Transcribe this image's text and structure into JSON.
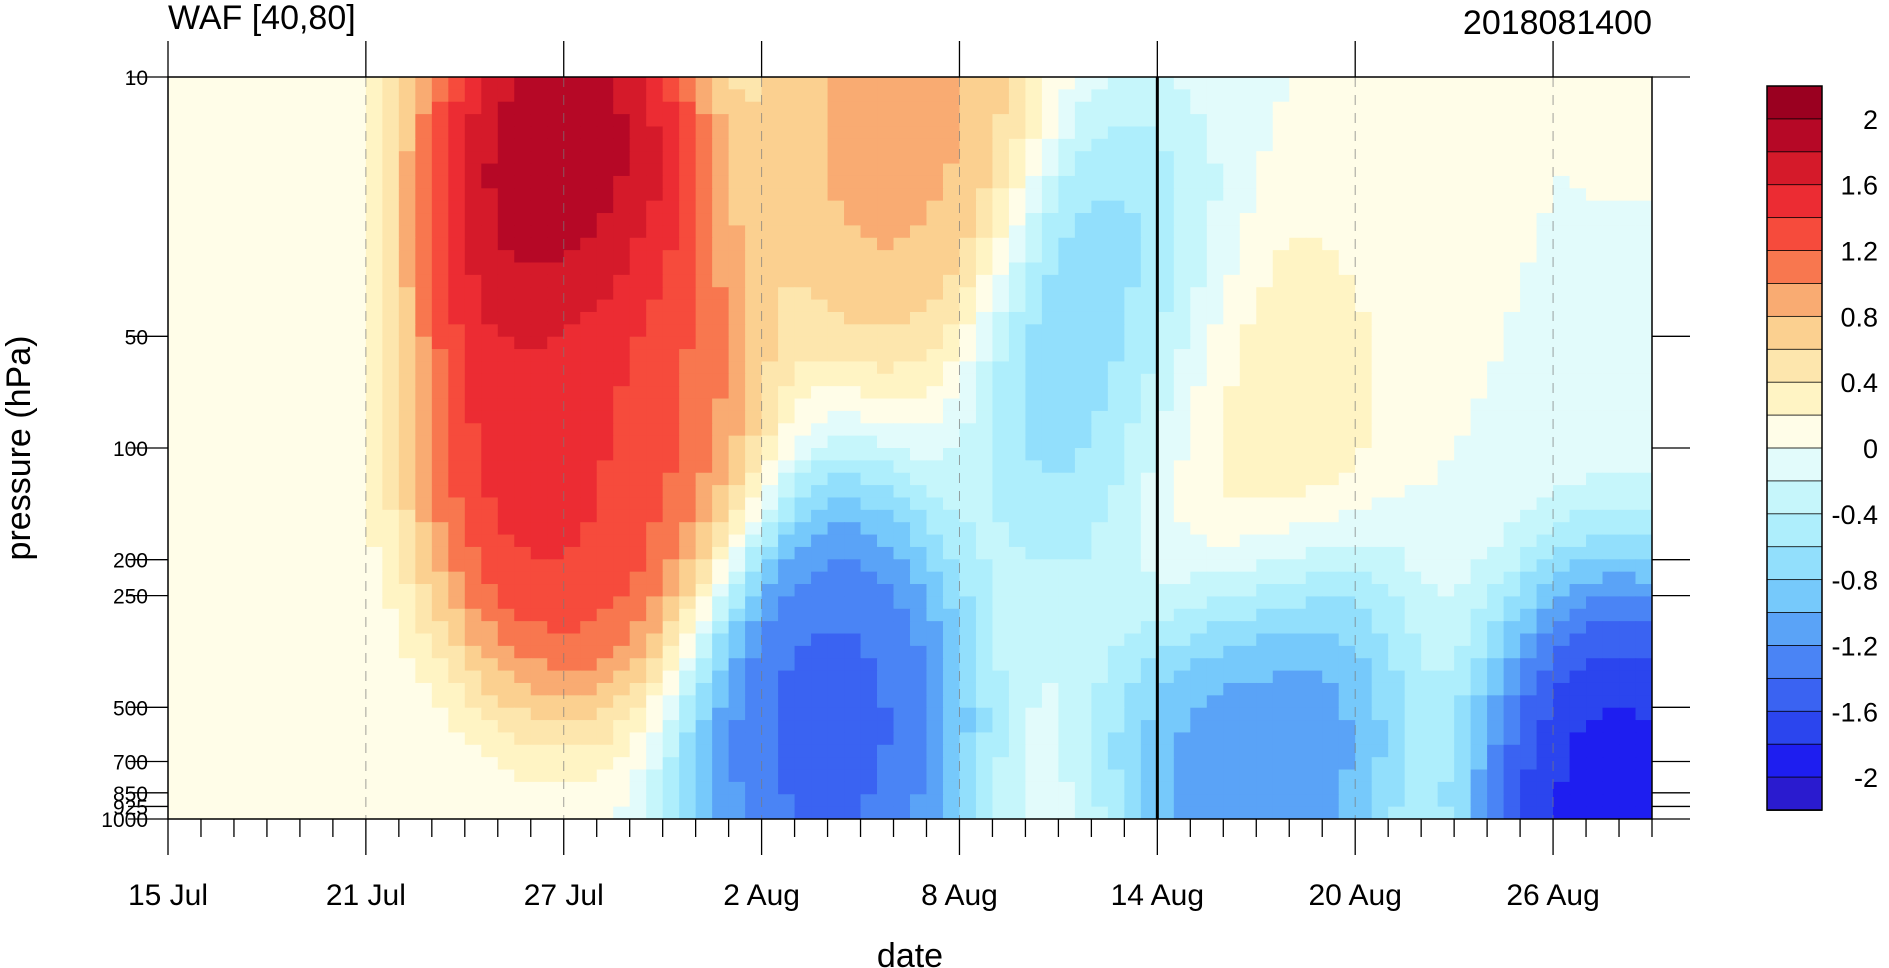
{
  "chart_data": {
    "type": "heatmap",
    "subtype": "filled-contour",
    "title_left": "WAF [40,80]",
    "title_right": "2018081400",
    "xlabel": "date",
    "ylabel": "pressure (hPa)",
    "y_scale": "log",
    "y_reversed": true,
    "ylim": [
      1000,
      10
    ],
    "xlim": [
      "2018-07-15",
      "2018-08-29"
    ],
    "x_ticks": [
      {
        "date": "2018-07-15",
        "label": "15 Jul"
      },
      {
        "date": "2018-07-21",
        "label": "21 Jul"
      },
      {
        "date": "2018-07-27",
        "label": "27 Jul"
      },
      {
        "date": "2018-08-02",
        "label": "2 Aug"
      },
      {
        "date": "2018-08-08",
        "label": "8 Aug"
      },
      {
        "date": "2018-08-14",
        "label": "14 Aug"
      },
      {
        "date": "2018-08-20",
        "label": "20 Aug"
      },
      {
        "date": "2018-08-26",
        "label": "26 Aug"
      }
    ],
    "y_ticks": [
      10,
      50,
      100,
      200,
      250,
      500,
      700,
      850,
      925,
      1000
    ],
    "y_tick_labels": [
      "10",
      "50",
      "100",
      "200",
      "250",
      "500",
      "700",
      "850",
      "925",
      "1000"
    ],
    "levels": [
      -2.2,
      -2.0,
      -1.8,
      -1.6,
      -1.4,
      -1.2,
      -1.0,
      -0.8,
      -0.6,
      -0.4,
      -0.2,
      0,
      0.2,
      0.4,
      0.6,
      0.8,
      1.0,
      1.2,
      1.4,
      1.6,
      1.8,
      2.0,
      2.2
    ],
    "colors": [
      "#2a1bcf",
      "#1e1ef0",
      "#2b45ee",
      "#3a63f2",
      "#4a84f5",
      "#5aa3f7",
      "#76c9fb",
      "#92dffc",
      "#aeeefc",
      "#c6f6fb",
      "#e2fbfb",
      "#fffde8",
      "#fff4c4",
      "#fde6ad",
      "#fbd090",
      "#f9ab72",
      "#f8774f",
      "#f64b3c",
      "#ec2c33",
      "#d51a2a",
      "#b60826",
      "#9a0020"
    ],
    "colorbar_labels": [
      "2",
      "1.6",
      "1.2",
      "0.8",
      "0.4",
      "0",
      "-0.4",
      "-0.8",
      "-1.2",
      "-1.6",
      "-2"
    ],
    "reference_line": "2018-08-14",
    "grid": "dashed vertical lines at date ticks",
    "features": [
      {
        "date": "2018-07-27",
        "pressure": 20,
        "value": 2.3
      },
      {
        "date": "2018-07-27",
        "pressure": 100,
        "value": 1.8
      },
      {
        "date": "2018-07-29",
        "pressure": 80,
        "value": 1.2
      },
      {
        "date": "2018-08-04",
        "pressure": 550,
        "value": -1.7
      },
      {
        "date": "2018-08-06",
        "pressure": 14,
        "value": 1.0
      },
      {
        "date": "2018-08-13",
        "pressure": 60,
        "value": -1.0
      },
      {
        "date": "2018-08-16",
        "pressure": 100,
        "value": 0.7
      },
      {
        "date": "2018-08-17",
        "pressure": 550,
        "value": -1.4
      },
      {
        "date": "2018-08-28",
        "pressure": 980,
        "value": -2.2
      }
    ]
  }
}
